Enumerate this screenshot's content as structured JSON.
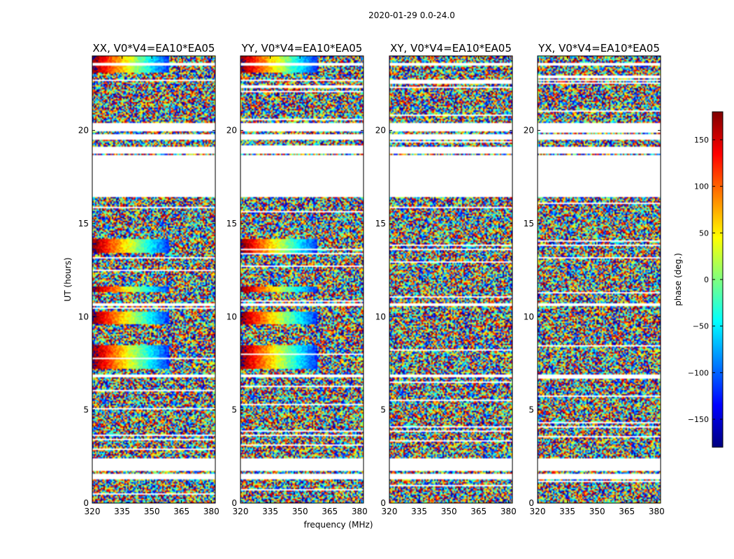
{
  "chart_data": {
    "type": "heatmap",
    "suptitle": "2020-01-29 0.0-24.0",
    "xlabel": "frequency (MHz)",
    "ylabel": "UT (hours)",
    "xlim": [
      320,
      382
    ],
    "ylim": [
      0,
      24
    ],
    "xticks": [
      320,
      335,
      350,
      365,
      380
    ],
    "yticks": [
      0,
      5,
      10,
      15,
      20
    ],
    "colorbar": {
      "label": "phase (deg.)",
      "range": [
        -180,
        180
      ],
      "ticks": [
        150,
        100,
        50,
        0,
        -50,
        -100,
        -150
      ],
      "tick_labels": [
        "150",
        "100",
        "50",
        "0",
        "−50",
        "−100",
        "−150"
      ],
      "colormap": "jet",
      "colors": [
        "#00007f",
        "#0000ff",
        "#007fff",
        "#00ffff",
        "#7fff7f",
        "#ffff00",
        "#ff7f00",
        "#ff0000",
        "#7f0000"
      ]
    },
    "panels": [
      {
        "title": "XX, V0*V4=EA10*EA05",
        "coherent_phase": true
      },
      {
        "title": "YY, V0*V4=EA10*EA05",
        "coherent_phase": true
      },
      {
        "title": "XY, V0*V4=EA10*EA05",
        "coherent_phase": false
      },
      {
        "title": "YX, V0*V4=EA10*EA05",
        "coherent_phase": false
      }
    ],
    "flagged_ut_ranges": [
      [
        1.25,
        1.6
      ],
      [
        1.7,
        2.4
      ],
      [
        6.75,
        6.9
      ],
      [
        10.6,
        10.75
      ],
      [
        16.45,
        18.7
      ],
      [
        18.78,
        19.1
      ],
      [
        19.5,
        19.8
      ],
      [
        19.95,
        20.4
      ],
      [
        23.5,
        23.6
      ],
      [
        22.65,
        22.75
      ]
    ],
    "observed_ut_ranges": [
      [
        0.0,
        1.25
      ],
      [
        1.6,
        1.7
      ],
      [
        2.4,
        6.75
      ],
      [
        6.9,
        10.6
      ],
      [
        10.75,
        16.45
      ],
      [
        18.7,
        18.78
      ],
      [
        19.1,
        19.5
      ],
      [
        19.8,
        19.95
      ],
      [
        20.4,
        22.65
      ],
      [
        22.75,
        23.5
      ],
      [
        23.6,
        24.0
      ]
    ]
  }
}
